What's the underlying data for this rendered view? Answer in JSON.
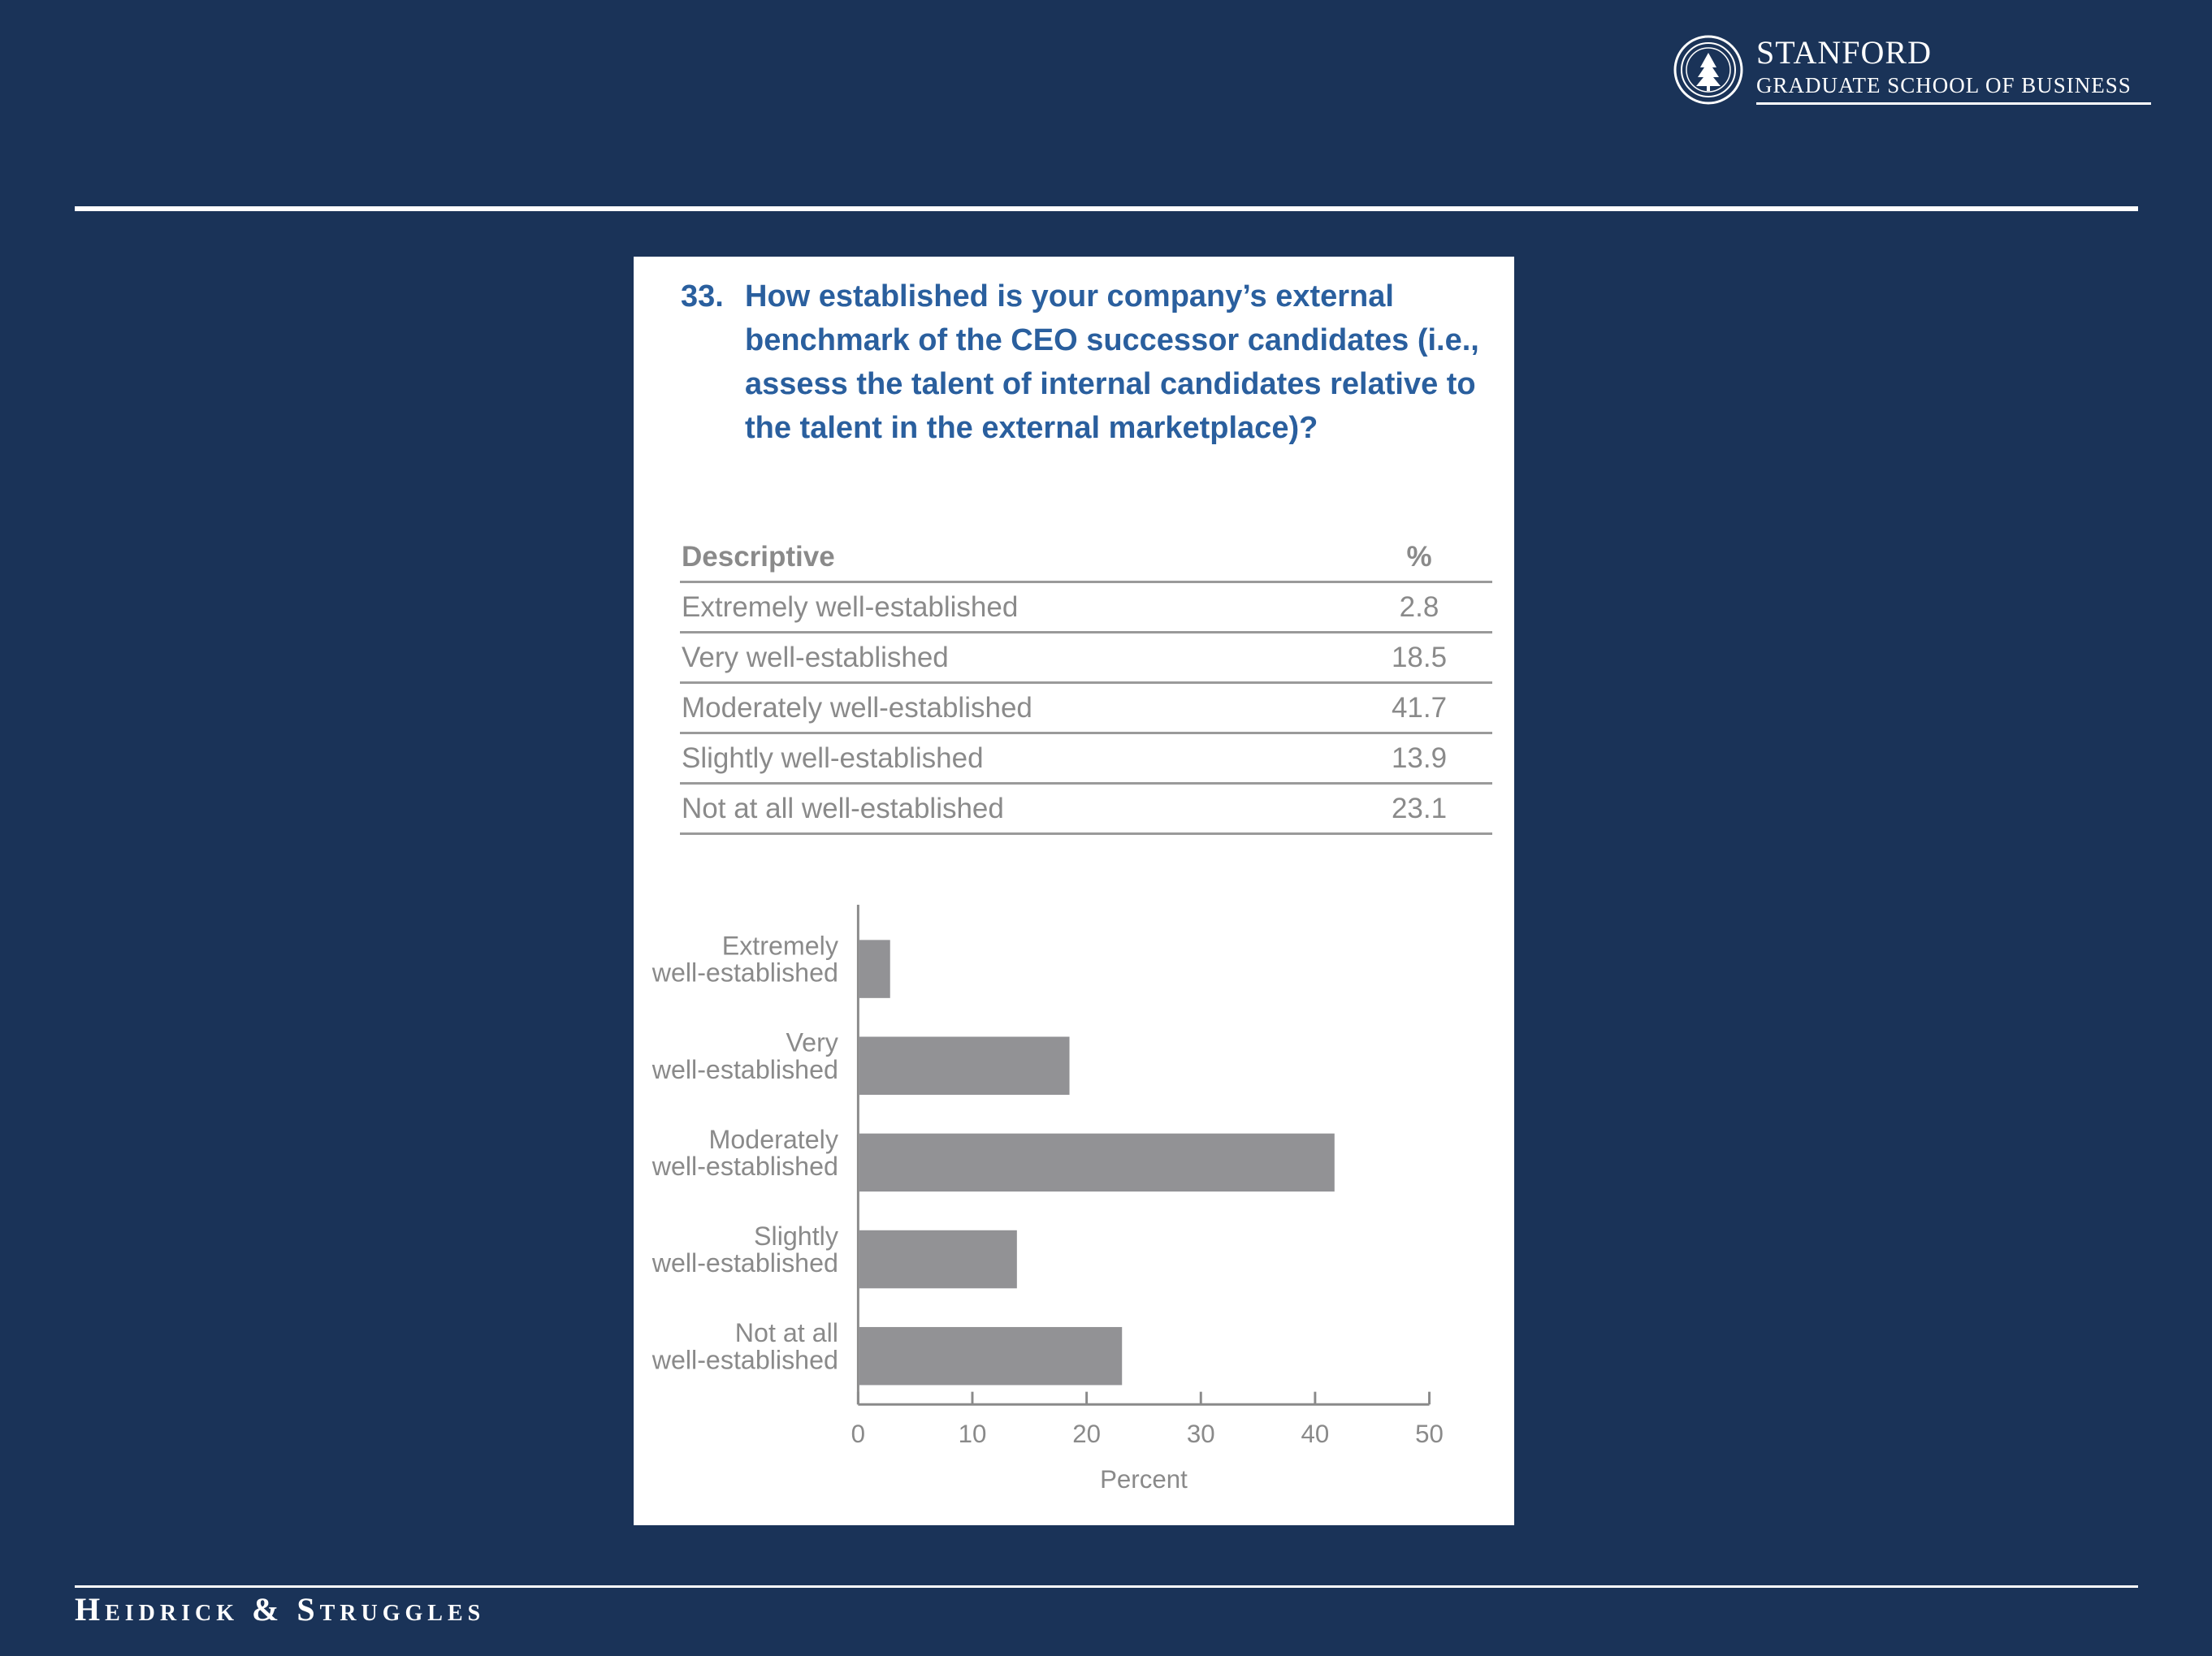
{
  "header": {
    "logo_name": "STANFORD",
    "logo_school": "GRADUATE SCHOOL OF BUSINESS"
  },
  "footer": {
    "brand": "Heidrick & Struggles"
  },
  "question": {
    "number": "33.",
    "text": "How established is your company’s external benchmark of the CEO successor candidates (i.e., assess the talent of internal candidates relative to the talent in the external marketplace)?"
  },
  "table": {
    "headers": [
      "Descriptive",
      "%"
    ],
    "rows": [
      {
        "label": "Extremely well-established",
        "value": "2.8"
      },
      {
        "label": "Very well-established",
        "value": "18.5"
      },
      {
        "label": "Moderately well-established",
        "value": "41.7"
      },
      {
        "label": "Slightly well-established",
        "value": "13.9"
      },
      {
        "label": "Not at all well-established",
        "value": "23.1"
      }
    ]
  },
  "chart_data": {
    "type": "bar",
    "orientation": "horizontal",
    "categories": [
      [
        "Extremely",
        "well-established"
      ],
      [
        "Very",
        "well-established"
      ],
      [
        "Moderately",
        "well-established"
      ],
      [
        "Slightly",
        "well-established"
      ],
      [
        "Not at all",
        "well-established"
      ]
    ],
    "values": [
      2.8,
      18.5,
      41.7,
      13.9,
      23.1
    ],
    "xlabel": "Percent",
    "xlim": [
      0,
      50
    ],
    "xticks": [
      0,
      10,
      20,
      30,
      40,
      50
    ],
    "grid": false,
    "bar_color": "#929295"
  },
  "colors": {
    "background": "#1a3358",
    "question_text": "#2a5f9e",
    "table_text": "#8a8a8a"
  }
}
